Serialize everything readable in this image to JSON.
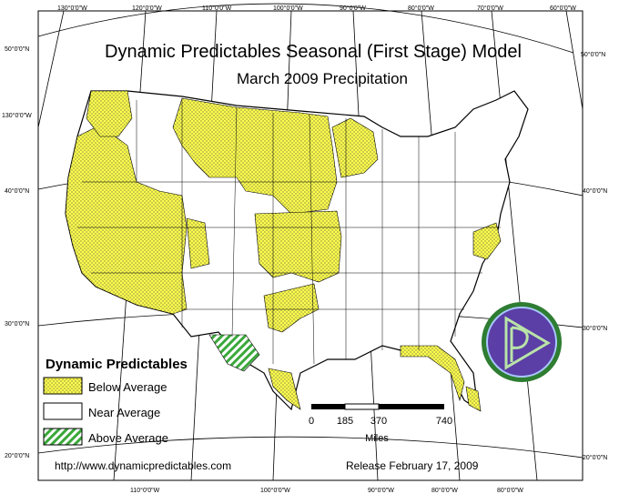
{
  "title": "Dynamic Predictables Seasonal (First Stage) Model",
  "subtitle": "March 2009 Precipitation",
  "graticule": {
    "top_labels": [
      "130°0'0\"W",
      "120°0'0\"W",
      "110°0'0\"W",
      "100°0'0\"W",
      "90°0'0\"W",
      "80°0'0\"W",
      "70°0'0\"W",
      "60°0'0\"W"
    ],
    "bottom_labels": [
      "110°0'0\"W",
      "100°0'0\"W",
      "90°0'0\"W",
      "80°0'0\"W",
      "80°0'0\"W"
    ],
    "left_labels": [
      "50°0'0\"N",
      "130°0'0\"W",
      "40°0'0\"N",
      "30°0'0\"N",
      "20°0'0\"N"
    ],
    "right_labels": [
      "50°0'0\"N",
      "40°0'0\"N",
      "30°0'0\"N",
      "20°0'0\"N"
    ]
  },
  "legend": {
    "title": "Dynamic Predictables",
    "items": [
      {
        "label": "Below Average",
        "color": "#ffff4d",
        "pattern": "dots"
      },
      {
        "label": "Near Average",
        "color": "#ffffff",
        "pattern": "none"
      },
      {
        "label": "Above Average",
        "color": "#ffffff",
        "pattern": "green-hatch"
      }
    ]
  },
  "scale_bar": {
    "ticks": [
      "0",
      "185",
      "370",
      "740"
    ],
    "unit": "Miles"
  },
  "footer": {
    "url": "http://www.dynamicpredictables.com",
    "release": "Release February 17, 2009"
  },
  "colors": {
    "below_average": "#ffff4d",
    "above_average_hatch": "#3aa83a",
    "logo_fill": "#5b3ea6",
    "logo_ring": "#2e7d32"
  },
  "logo": {
    "icon": "dynamic-predictables-logo"
  }
}
